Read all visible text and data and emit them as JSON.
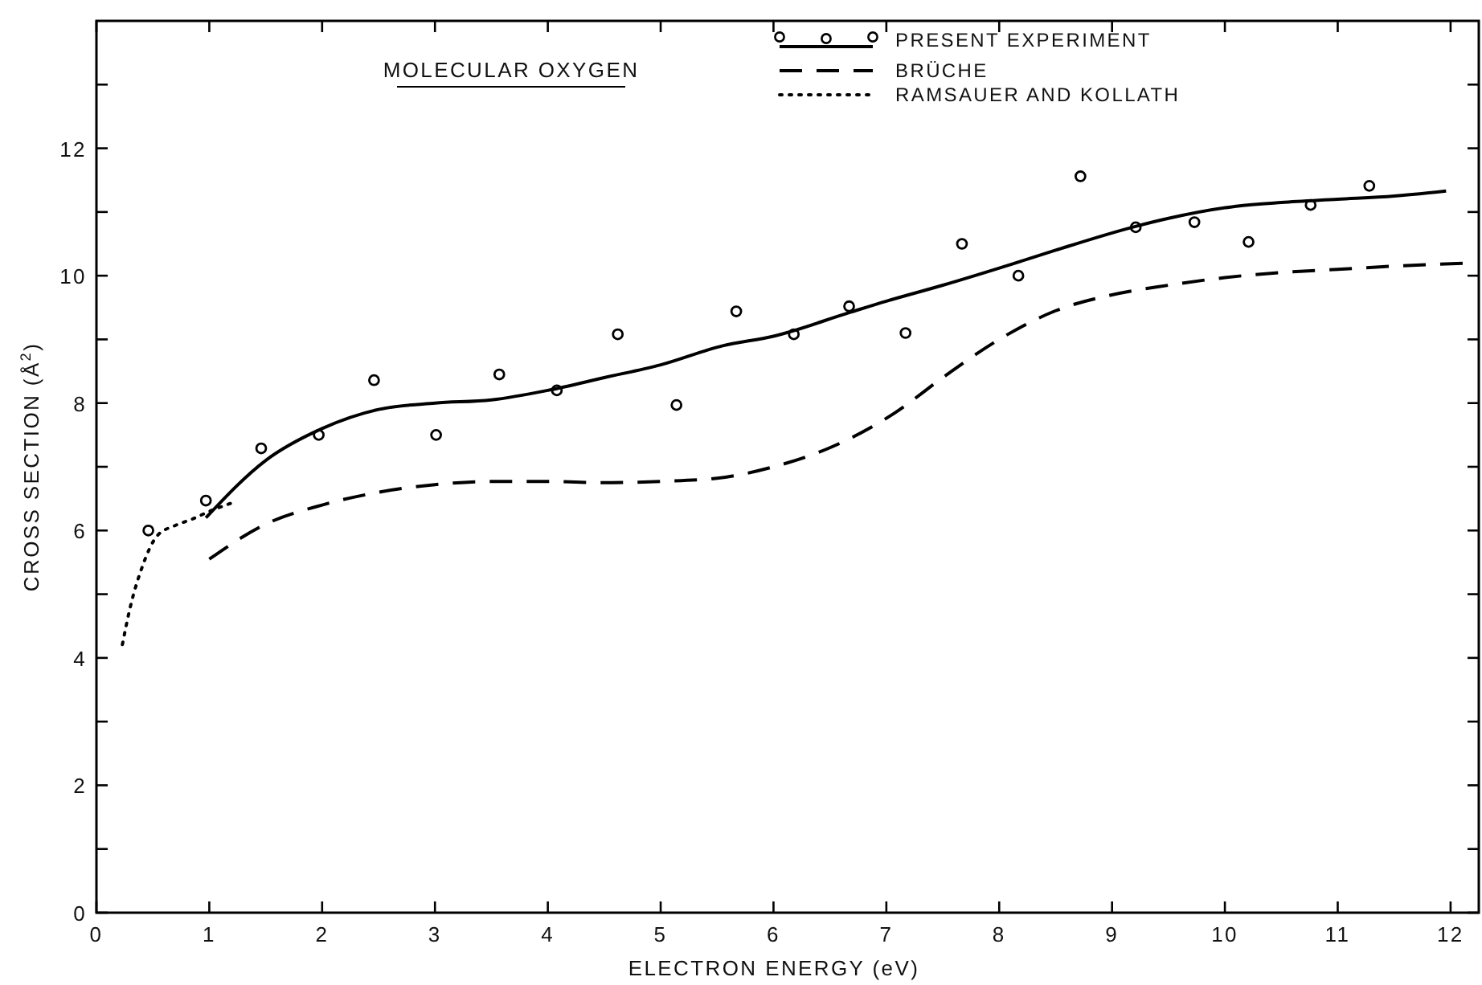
{
  "chart_data": {
    "type": "line",
    "title": "MOLECULAR OXYGEN",
    "xlabel": "ELECTRON ENERGY (eV)",
    "ylabel": "CROSS SECTION (Å$^{2}$)",
    "xlim": [
      0,
      12.25
    ],
    "ylim": [
      0,
      14
    ],
    "xticks": [
      0,
      1,
      2,
      3,
      4,
      5,
      6,
      7,
      8,
      9,
      10,
      11,
      12
    ],
    "yticks": [
      0,
      {
        "value": 1,
        "label": null
      },
      2,
      {
        "value": 3,
        "label": null
      },
      4,
      {
        "value": 5,
        "label": null
      },
      6,
      {
        "value": 7,
        "label": null
      },
      8,
      {
        "value": 9,
        "label": null
      },
      10,
      {
        "value": 11,
        "label": null
      },
      12,
      {
        "value": 13,
        "label": null
      }
    ],
    "grid": false,
    "legend": "top",
    "series": [
      {
        "type": "scatter",
        "marker": "circle",
        "color": "#000000",
        "x": [
          0.46,
          0.97,
          1.46,
          1.97,
          2.46,
          3.01,
          3.57,
          4.08,
          4.62,
          5.14,
          5.67,
          6.18,
          6.67,
          7.17,
          7.67,
          8.17,
          8.72,
          9.21,
          9.73,
          10.21,
          10.76,
          11.28
        ],
        "values": [
          6.0,
          6.47,
          7.29,
          7.5,
          8.36,
          7.5,
          8.45,
          8.2,
          9.08,
          7.97,
          9.44,
          9.08,
          9.52,
          9.1,
          10.5,
          10.0,
          11.56,
          10.76,
          10.84,
          10.53,
          11.11,
          11.41
        ]
      },
      {
        "name": "PRESENT EXPERIMENT",
        "line_style": "solid",
        "marker": "none",
        "color": "#000000",
        "x": [
          0.97,
          1.5,
          2,
          2.5,
          3,
          3.5,
          4,
          4.5,
          5,
          5.55,
          6,
          6.67,
          7,
          7.5,
          8.11,
          8.5,
          9.2,
          9.5,
          10.1,
          10.5,
          11,
          11.5,
          11.96
        ],
        "values": [
          6.2,
          7.1,
          7.6,
          7.9,
          8.0,
          8.05,
          8.2,
          8.4,
          8.6,
          8.9,
          9.05,
          9.42,
          9.6,
          9.85,
          10.18,
          10.4,
          10.77,
          10.9,
          11.09,
          11.15,
          11.2,
          11.25,
          11.33
        ]
      },
      {
        "name": "BRÜCHE",
        "line_style": "dashed",
        "marker": "none",
        "color": "#000000",
        "x": [
          1,
          1.5,
          2,
          2.5,
          3,
          3.5,
          4,
          4.5,
          5,
          5.5,
          6,
          6.5,
          7.07,
          7.5,
          8,
          8.5,
          9,
          9.5,
          10,
          10.5,
          11,
          11.5,
          12.2
        ],
        "values": [
          5.55,
          6.1,
          6.4,
          6.6,
          6.72,
          6.77,
          6.77,
          6.75,
          6.77,
          6.82,
          7.0,
          7.3,
          7.84,
          8.4,
          9.0,
          9.45,
          9.7,
          9.85,
          9.97,
          10.05,
          10.1,
          10.15,
          10.2
        ]
      },
      {
        "name": "RAMSAUER AND KOLLATH",
        "line_style": "dotted",
        "marker": "none",
        "color": "#000000",
        "x": [
          0.23,
          0.3,
          0.4,
          0.54,
          0.7,
          0.85,
          1.0,
          1.23
        ],
        "values": [
          4.21,
          4.8,
          5.4,
          5.92,
          6.08,
          6.18,
          6.3,
          6.45
        ]
      }
    ]
  }
}
